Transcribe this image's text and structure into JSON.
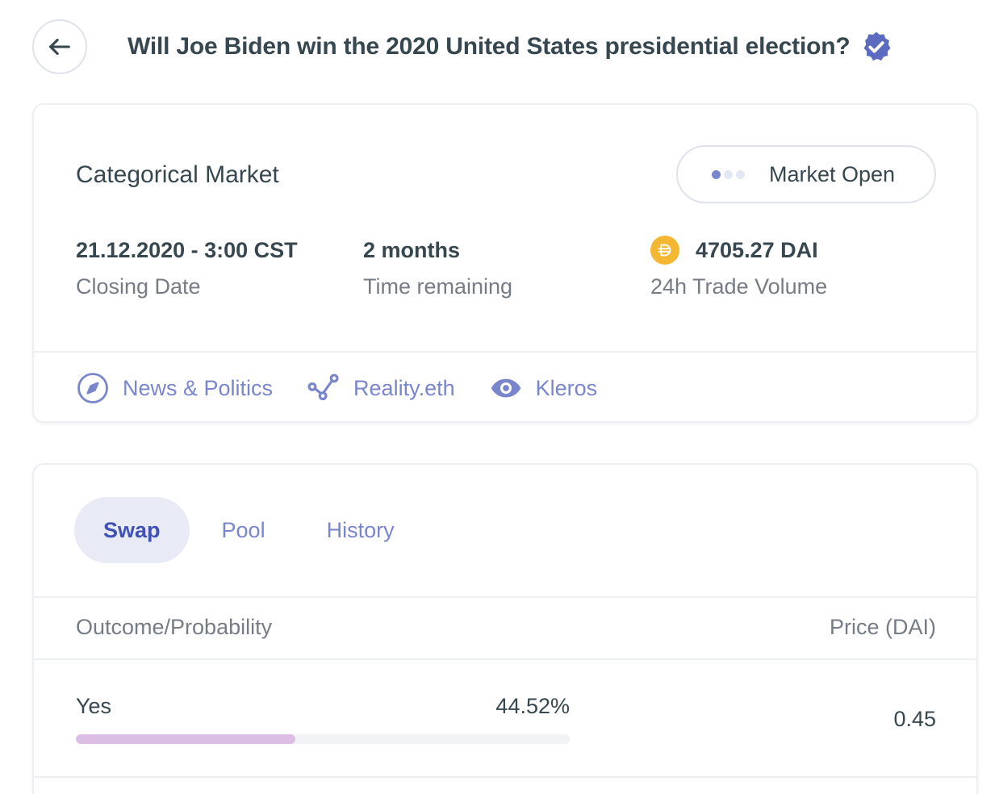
{
  "header": {
    "title": "Will Joe Biden win the 2020 United States presidential election?"
  },
  "market": {
    "type": "Categorical Market",
    "status": "Market Open",
    "stats": [
      {
        "value": "21.12.2020 - 3:00 CST",
        "label": "Closing Date"
      },
      {
        "value": "2 months",
        "label": "Time remaining"
      },
      {
        "value": "4705.27 DAI",
        "label": "24h Trade Volume",
        "icon": "dai-icon"
      }
    ],
    "tags": [
      {
        "label": "News & Politics",
        "icon": "compass-icon"
      },
      {
        "label": "Reality.eth",
        "icon": "share-nodes-icon"
      },
      {
        "label": "Kleros",
        "icon": "eye-icon"
      }
    ]
  },
  "trade": {
    "tabs": [
      {
        "label": "Swap",
        "active": true
      },
      {
        "label": "Pool",
        "active": false
      },
      {
        "label": "History",
        "active": false
      }
    ],
    "columns": {
      "outcome": "Outcome/Probability",
      "price": "Price (DAI)"
    },
    "outcomes": [
      {
        "name": "Yes",
        "probability_text": "44.52%",
        "probability": 0.4452,
        "price": "0.45"
      }
    ]
  },
  "colors": {
    "accent": "#7986cb",
    "accent_dark": "#3f51b5",
    "tab_active_bg": "#e8eaf6",
    "dai": "#f4b731",
    "probability_bar": "#dcbde4"
  }
}
